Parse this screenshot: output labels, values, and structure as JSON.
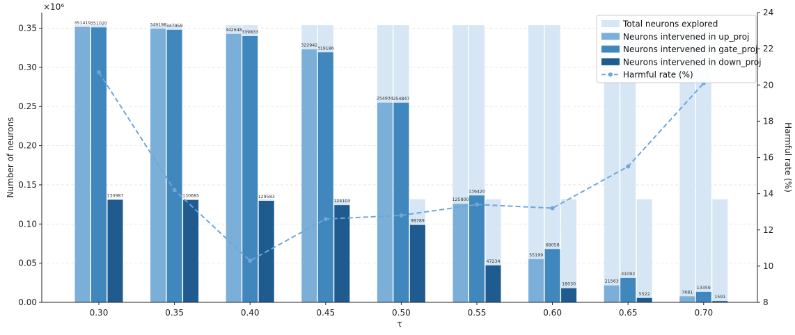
{
  "chart_data": {
    "type": "bar",
    "categories": [
      "0.30",
      "0.35",
      "0.40",
      "0.45",
      "0.50",
      "0.55",
      "0.60",
      "0.65",
      "0.70"
    ],
    "xlabel": "τ",
    "ylabel": "Number of neurons",
    "y_multiplier": "×10⁶",
    "y2label": "Harmful rate (%)",
    "ylim": [
      0,
      0.37
    ],
    "yticks": [
      "0.00",
      "0.05",
      "0.10",
      "0.15",
      "0.20",
      "0.25",
      "0.30",
      "0.35"
    ],
    "y2lim": [
      8,
      24
    ],
    "y2ticks": [
      "8",
      "10",
      "12",
      "14",
      "16",
      "18",
      "20",
      "22",
      "24"
    ],
    "grid": "horizontal dashed",
    "legend_position": "top-right",
    "series": [
      {
        "name": "Total neurons explored",
        "kind": "bar",
        "color": "#d6e6f5",
        "up_proj": [
          0.3539,
          0.3539,
          0.3539,
          0.3539,
          0.3539,
          0.3539,
          0.3539,
          0.3539,
          0.3539
        ],
        "gate_proj": [
          0.3539,
          0.3539,
          0.3539,
          0.3539,
          0.3539,
          0.3539,
          0.3539,
          0.3539,
          0.3539
        ],
        "down_proj": [
          0.1316,
          0.1316,
          0.1316,
          0.1316,
          0.1316,
          0.1316,
          0.1316,
          0.1316,
          0.1316
        ]
      },
      {
        "name": "Neurons intervened in up_proj",
        "kind": "bar",
        "color": "#7bafd8",
        "values": [
          0.351419,
          0.349198,
          0.342648,
          0.322942,
          0.254934,
          0.1258,
          0.055199,
          0.021563,
          0.007681
        ],
        "labels": [
          "351419",
          "349198",
          "342648",
          "322942",
          "254934",
          "125800",
          "55199",
          "21563",
          "7681"
        ]
      },
      {
        "name": "Neurons intervened in gate_proj",
        "kind": "bar",
        "color": "#3f87bd",
        "values": [
          0.35102,
          0.347959,
          0.339833,
          0.319186,
          0.254847,
          0.13642,
          0.068058,
          0.031092,
          0.013359
        ],
        "labels": [
          "351020",
          "347959",
          "339833",
          "319186",
          "254847",
          "136420",
          "68058",
          "31092",
          "13359"
        ]
      },
      {
        "name": "Neurons intervened in down_proj",
        "kind": "bar",
        "color": "#1f5b8e",
        "values": [
          0.130987,
          0.130685,
          0.129583,
          0.124103,
          0.098789,
          0.047234,
          0.01803,
          0.005522,
          0.001591
        ],
        "labels": [
          "130987",
          "130685",
          "129583",
          "124103",
          "98789",
          "47234",
          "18030",
          "5522",
          "1591"
        ]
      },
      {
        "name": "Harmful rate (%)",
        "kind": "line",
        "color": "#6ea6d9",
        "axis": "right",
        "values": [
          20.7,
          14.2,
          10.3,
          12.6,
          12.8,
          13.4,
          13.2,
          15.5,
          20.1
        ]
      }
    ]
  }
}
